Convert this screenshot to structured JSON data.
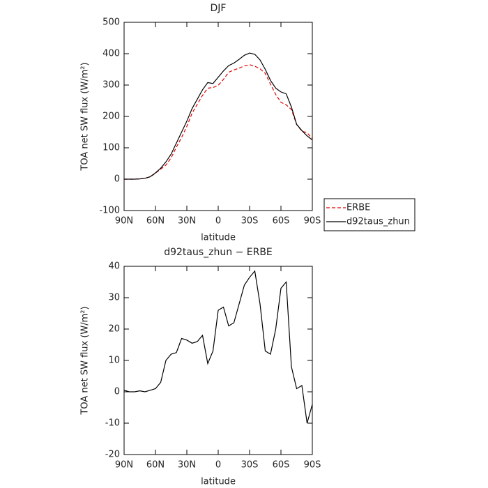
{
  "chart_data": [
    {
      "type": "line",
      "title": "DJF",
      "xlabel": "latitude",
      "ylabel": "TOA net SW flux (W/m²)",
      "x": [
        90,
        85,
        80,
        75,
        70,
        65,
        60,
        55,
        50,
        45,
        40,
        35,
        30,
        25,
        20,
        15,
        10,
        5,
        0,
        -5,
        -10,
        -15,
        -20,
        -25,
        -30,
        -35,
        -40,
        -45,
        -50,
        -55,
        -60,
        -65,
        -70,
        -75,
        -80,
        -85,
        -90
      ],
      "series": [
        {
          "name": "ERBE",
          "color": "#e00000",
          "dashed": true,
          "values": [
            0,
            0,
            0,
            1,
            3,
            7,
            19,
            32,
            45,
            68,
            102,
            133,
            168,
            210,
            239,
            267,
            290,
            292,
            299,
            318,
            341,
            348,
            354,
            361,
            365,
            360,
            352,
            337,
            303,
            270,
            245,
            237,
            222,
            174,
            153,
            148,
            129
          ]
        },
        {
          "name": "d92taus_zhun",
          "color": "#000000",
          "dashed": false,
          "values": [
            0,
            0,
            0,
            1,
            3,
            8,
            20,
            35,
            55,
            80,
            115,
            150,
            185,
            225,
            255,
            285,
            308,
            305,
            325,
            345,
            362,
            370,
            382,
            395,
            402,
            398,
            380,
            350,
            315,
            290,
            278,
            272,
            230,
            175,
            155,
            138,
            125
          ]
        }
      ],
      "xlim": [
        90,
        -90
      ],
      "ylim": [
        -100,
        500
      ],
      "xticks": [
        {
          "value": 90,
          "label": "90N"
        },
        {
          "value": 60,
          "label": "60N"
        },
        {
          "value": 30,
          "label": "30N"
        },
        0,
        {
          "value": -30,
          "label": "30S"
        },
        {
          "value": -60,
          "label": "60S"
        },
        {
          "value": -90,
          "label": "90S"
        }
      ],
      "yticks": [
        -100,
        0,
        100,
        200,
        300,
        400,
        500
      ],
      "legend": "outside-right"
    },
    {
      "type": "line",
      "title": "d92taus_zhun − ERBE",
      "xlabel": "latitude",
      "ylabel": "TOA net SW flux (W/m²)",
      "x": [
        90,
        85,
        80,
        75,
        70,
        65,
        60,
        55,
        50,
        45,
        40,
        35,
        30,
        25,
        20,
        15,
        10,
        5,
        0,
        -5,
        -10,
        -15,
        -20,
        -25,
        -30,
        -35,
        -40,
        -45,
        -50,
        -55,
        -60,
        -65,
        -70,
        -75,
        -80,
        -85,
        -90
      ],
      "series": [
        {
          "color": "#000000",
          "dashed": false,
          "values": [
            0.5,
            0,
            0,
            0.3,
            0,
            0.5,
            1,
            3,
            10,
            12,
            12.5,
            17,
            16.5,
            15.5,
            16,
            18,
            9,
            13,
            26,
            27,
            21,
            22,
            28,
            34,
            36.5,
            38.5,
            28,
            13,
            12,
            20,
            33,
            35,
            8,
            1,
            2,
            -10,
            -4
          ]
        }
      ],
      "xlim": [
        90,
        -90
      ],
      "ylim": [
        -20,
        40
      ],
      "xticks": [
        {
          "value": 90,
          "label": "90N"
        },
        {
          "value": 60,
          "label": "60N"
        },
        {
          "value": 30,
          "label": "30N"
        },
        0,
        {
          "value": -30,
          "label": "30S"
        },
        {
          "value": -60,
          "label": "60S"
        },
        {
          "value": -90,
          "label": "90S"
        }
      ],
      "yticks": [
        -20,
        -10,
        0,
        10,
        20,
        30,
        40
      ]
    }
  ]
}
